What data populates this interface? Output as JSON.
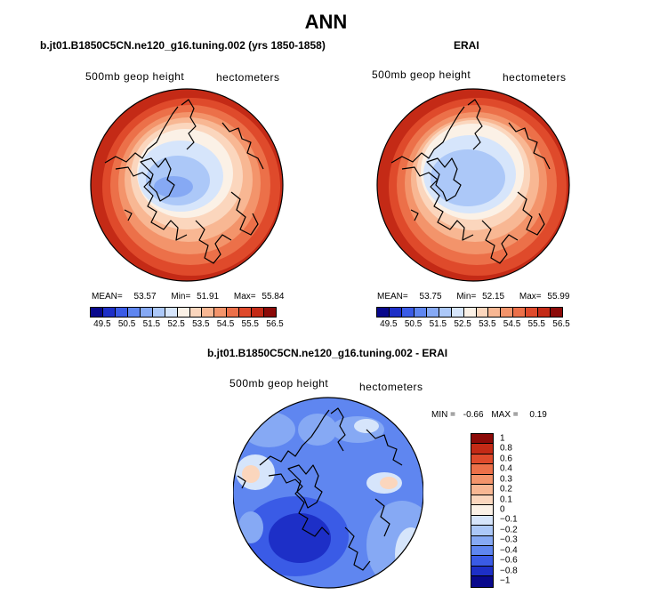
{
  "figure_title": "ANN",
  "panels": [
    {
      "title": "b.jt01.B1850C5CN.ne120_g16.tuning.002 (yrs 1850-1858)",
      "field_label": "500mb geop height",
      "units_label": "hectometers",
      "stats": {
        "mean_label": "MEAN=",
        "mean": "53.57",
        "min_label": "Min=",
        "min": "51.91",
        "max_label": "Max=",
        "max": "55.84"
      }
    },
    {
      "title": "ERAI",
      "field_label": "500mb geop height",
      "units_label": "hectometers",
      "stats": {
        "mean_label": "MEAN=",
        "mean": "53.75",
        "min_label": "Min=",
        "min": "52.15",
        "max_label": "Max=",
        "max": "55.99"
      }
    }
  ],
  "abs_colorbar": {
    "colors": [
      "#08088c",
      "#1d2fc7",
      "#3a5be6",
      "#5f86f0",
      "#86a9f4",
      "#acc8f8",
      "#d6e5fb",
      "#fbf1e6",
      "#fbd6bd",
      "#f8b793",
      "#f3946b",
      "#ec7049",
      "#df4a2b",
      "#c42a16",
      "#8c0a08"
    ],
    "tick_labels": [
      "49.5",
      "50.5",
      "51.5",
      "52.5",
      "53.5",
      "54.5",
      "55.5",
      "56.5"
    ]
  },
  "diff_panel": {
    "title": "b.jt01.B1850C5CN.ne120_g16.tuning.002 - ERAI",
    "field_label": "500mb geop height",
    "units_label": "hectometers",
    "stats": {
      "min_label": "MIN =",
      "min": "-0.66",
      "max_label": "MAX =",
      "max": "0.19"
    },
    "colorbar": {
      "colors": [
        "#8c0a08",
        "#c42a16",
        "#df4a2b",
        "#ec7049",
        "#f3946b",
        "#f8b793",
        "#fbd6bd",
        "#fbf1e6",
        "#d6e5fb",
        "#acc8f8",
        "#86a9f4",
        "#5f86f0",
        "#3a5be6",
        "#1d2fc7",
        "#08088c"
      ],
      "labels": [
        "1",
        "0.8",
        "0.6",
        "0.4",
        "0.3",
        "0.2",
        "0.1",
        "0",
        "−0.1",
        "−0.2",
        "−0.3",
        "−0.4",
        "−0.6",
        "−0.8",
        "−1"
      ]
    }
  }
}
